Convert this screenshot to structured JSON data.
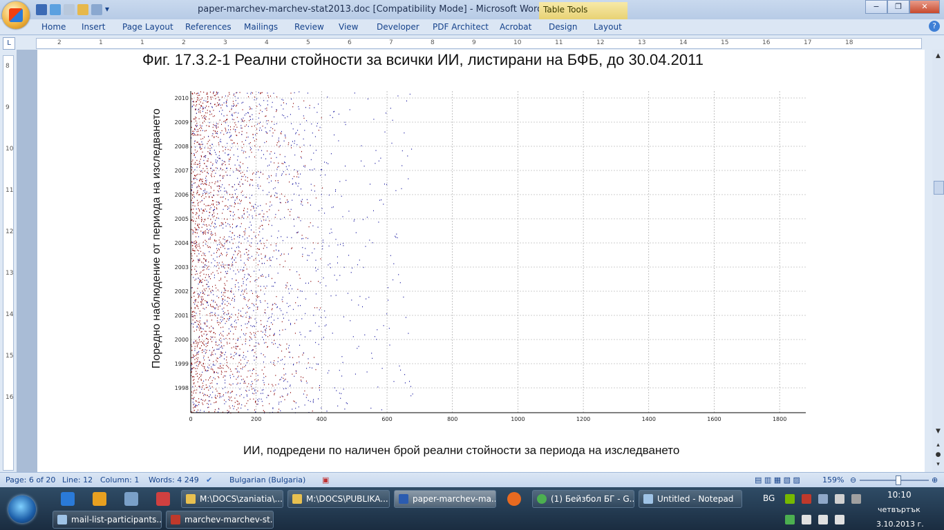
{
  "window": {
    "title": "paper-marchev-marchev-stat2013.doc [Compatibility Mode] - Microsoft Word",
    "contextual_group": "Table Tools",
    "controls": [
      "−",
      "❐",
      "✕"
    ]
  },
  "ribbon": {
    "tabs": [
      "Home",
      "Insert",
      "Page Layout",
      "References",
      "Mailings",
      "Review",
      "View",
      "Developer",
      "PDF Architect",
      "Acrobat",
      "Design",
      "Layout"
    ]
  },
  "ruler": {
    "h_labels": [
      "2",
      "1",
      "1",
      "2",
      "3",
      "4",
      "5",
      "6",
      "7",
      "8",
      "9",
      "10",
      "11",
      "12",
      "13",
      "14",
      "15",
      "16",
      "17",
      "18"
    ],
    "v_labels": [
      "8",
      "9",
      "10",
      "11",
      "12",
      "13",
      "14",
      "15",
      "16"
    ]
  },
  "document": {
    "figure_caption": "Фиг. 17.3.2-1 Реални стойности за всички ИИ, листирани на БФБ, до 30.04.2011",
    "x_caption": "ИИ, подредени по наличен брой реални стойности за периода на изследването",
    "y_caption": "Поредно наблюдение от периода на изследването"
  },
  "chart_data": {
    "type": "scatter",
    "title": "",
    "xlabel": "ИИ, подредени по наличен брой реални стойности за периода на изследването",
    "ylabel": "Поредно наблюдение от периода на изследването",
    "xlim": [
      0,
      1880
    ],
    "x_ticks": [
      0,
      200,
      400,
      600,
      800,
      1000,
      1200,
      1400,
      1600,
      1800
    ],
    "y_ticks": [
      "1998",
      "1999",
      "2000",
      "2001",
      "2002",
      "2003",
      "2004",
      "2005",
      "2006",
      "2007",
      "2008",
      "2009",
      "2010"
    ],
    "grid": true,
    "series": [
      {
        "color": "#8b0000",
        "density_profile": [
          [
            0,
            1.0
          ],
          [
            20,
            0.95
          ],
          [
            60,
            0.55
          ],
          [
            120,
            0.35
          ],
          [
            200,
            0.2
          ],
          [
            300,
            0.08
          ],
          [
            400,
            0.02
          ]
        ]
      },
      {
        "color": "#1a1aa0",
        "density_profile": [
          [
            0,
            0.2
          ],
          [
            100,
            0.3
          ],
          [
            200,
            0.22
          ],
          [
            300,
            0.15
          ],
          [
            400,
            0.09
          ],
          [
            500,
            0.04
          ],
          [
            700,
            0.015
          ],
          [
            1400,
            0.004
          ]
        ]
      }
    ]
  },
  "statusbar": {
    "page": "Page: 6 of 20",
    "line": "Line: 12",
    "column": "Column: 1",
    "words": "Words: 4 249",
    "language": "Bulgarian (Bulgaria)",
    "zoom": "159%"
  },
  "taskbar": {
    "buttons": [
      {
        "label": "M:\\DOCS\\zaniatia\\...",
        "color": "#e8c050"
      },
      {
        "label": "M:\\DOCS\\PUBLIKA...",
        "color": "#e8c050"
      },
      {
        "label": "paper-marchev-ma...",
        "color": "#2b5cb0",
        "active": true
      },
      {
        "label": "(1) Бейзбол БГ - G...",
        "color": "#4caf50"
      },
      {
        "label": "Untitled - Notepad",
        "color": "#9fc3e6"
      },
      {
        "label": "mail-list-participants...",
        "color": "#9fc3e6"
      },
      {
        "label": "marchev-marchev-st...",
        "color": "#c0392b"
      }
    ],
    "language": "BG",
    "time": "10:10",
    "day": "четвъртък",
    "date": "3.10.2013 г."
  }
}
